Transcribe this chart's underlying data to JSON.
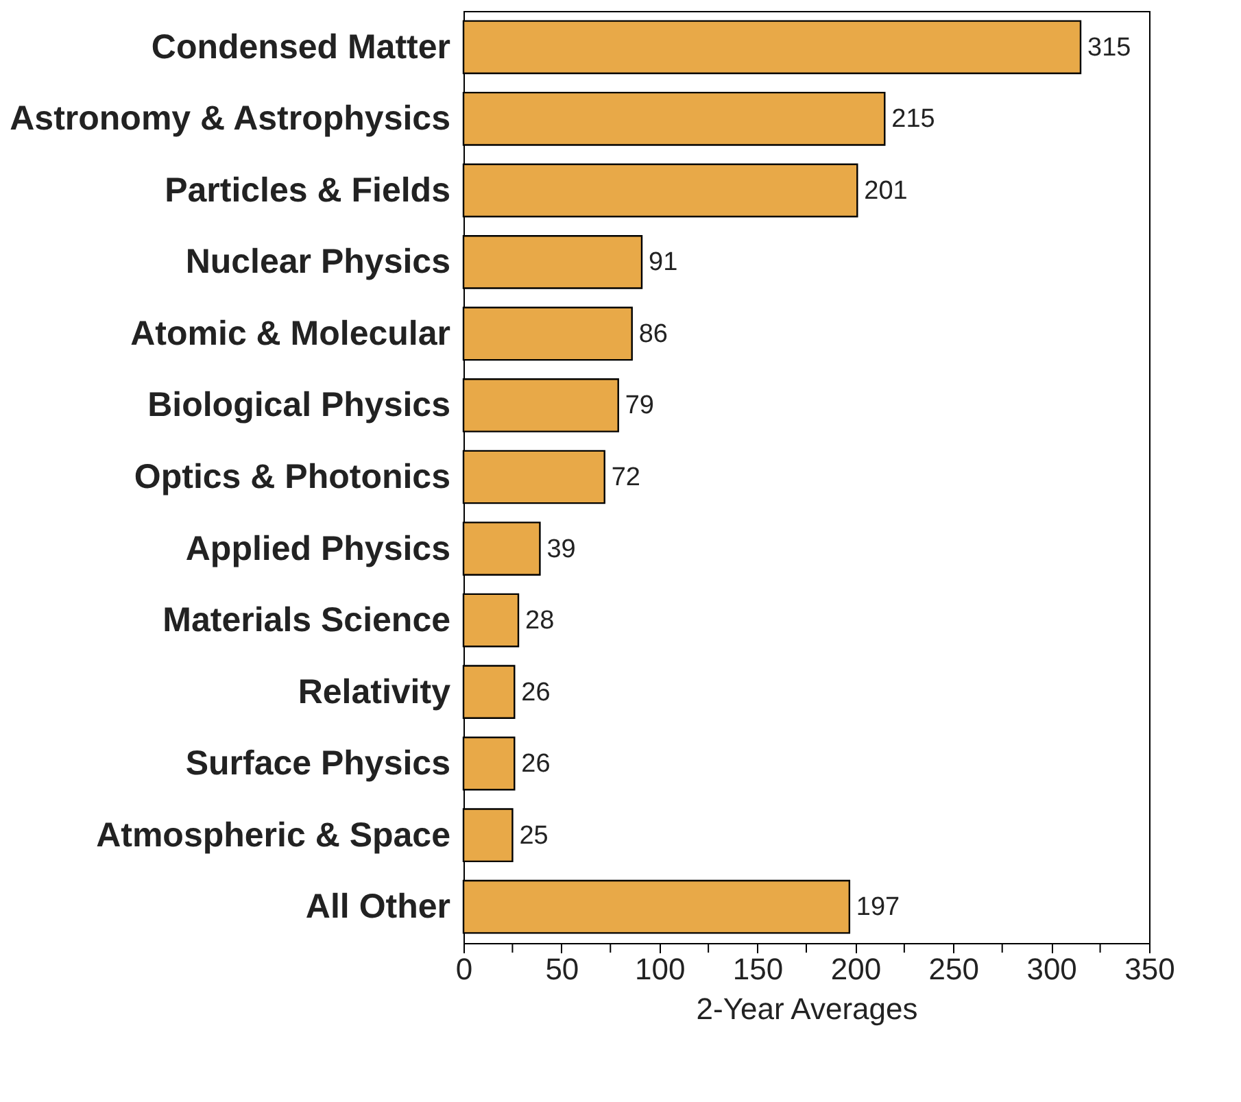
{
  "chart_data": {
    "type": "bar",
    "orientation": "horizontal",
    "xlabel": "2-Year Averages",
    "categories": [
      "Condensed Matter",
      "Astronomy & Astrophysics",
      "Particles & Fields",
      "Nuclear Physics",
      "Atomic & Molecular",
      "Biological Physics",
      "Optics & Photonics",
      "Applied Physics",
      "Materials Science",
      "Relativity",
      "Surface Physics",
      "Atmospheric & Space",
      "All Other"
    ],
    "values": [
      315,
      215,
      201,
      91,
      86,
      79,
      72,
      39,
      28,
      26,
      26,
      25,
      197
    ],
    "color": "#e8a948",
    "xlim": [
      0,
      350
    ],
    "xticks": [
      0,
      {
        "value": 25,
        "label": null
      },
      50,
      {
        "value": 75,
        "label": null
      },
      100,
      {
        "value": 125,
        "label": null
      },
      150,
      {
        "value": 175,
        "label": null
      },
      200,
      {
        "value": 225,
        "label": null
      },
      250,
      {
        "value": 275,
        "label": null
      },
      300,
      {
        "value": 325,
        "label": null
      },
      350
    ],
    "data_labels": true,
    "grid": false
  }
}
